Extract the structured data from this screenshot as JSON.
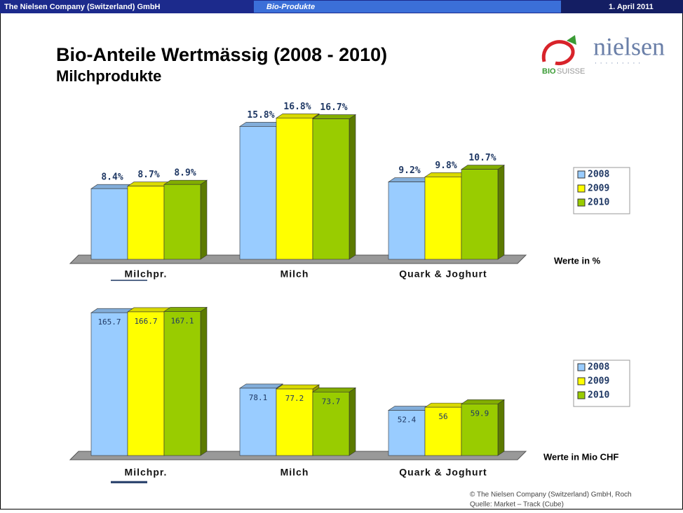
{
  "header": {
    "company": "The Nielsen Company (Switzerland) GmbH",
    "section": "Bio-Produkte",
    "date": "1. April 2011"
  },
  "title": "Bio-Anteile Wertmässig (2008 - 2010)",
  "subtitle": "Milchprodukte",
  "logos": {
    "nielsen": "nielsen",
    "bio": "BIO",
    "suisse": "SUISSE"
  },
  "footer": {
    "copyright": "© The Nielsen Company (Switzerland) GmbH, Roch",
    "source": "Quelle: Market – Track (Cube)"
  },
  "chart_data": [
    {
      "type": "bar",
      "y_label": "Werte in %",
      "legend": "right",
      "categories": [
        "Milchpr.",
        "Milch",
        "Quark & Joghurt"
      ],
      "series": [
        {
          "name": "2008",
          "color": "#99ccff",
          "values": [
            8.4,
            15.8,
            9.2
          ],
          "value_labels": [
            "8.4%",
            "15.8%",
            "9.2%"
          ]
        },
        {
          "name": "2009",
          "color": "#ffff00",
          "values": [
            8.7,
            16.8,
            9.8
          ],
          "value_labels": [
            "8.7%",
            "16.8%",
            "9.8%"
          ]
        },
        {
          "name": "2010",
          "color": "#99cc00",
          "values": [
            8.9,
            16.7,
            10.7
          ],
          "value_labels": [
            "8.9%",
            "16.7%",
            "10.7%"
          ]
        }
      ]
    },
    {
      "type": "bar",
      "y_label": "Werte in Mio CHF",
      "legend": "right",
      "categories": [
        "Milchpr.",
        "Milch",
        "Quark & Joghurt"
      ],
      "series": [
        {
          "name": "2008",
          "color": "#99ccff",
          "values": [
            165.7,
            78.1,
            52.4
          ]
        },
        {
          "name": "2009",
          "color": "#ffff00",
          "values": [
            166.7,
            77.2,
            56
          ]
        },
        {
          "name": "2010",
          "color": "#99cc00",
          "values": [
            167.1,
            73.7,
            59.9
          ]
        }
      ]
    }
  ]
}
